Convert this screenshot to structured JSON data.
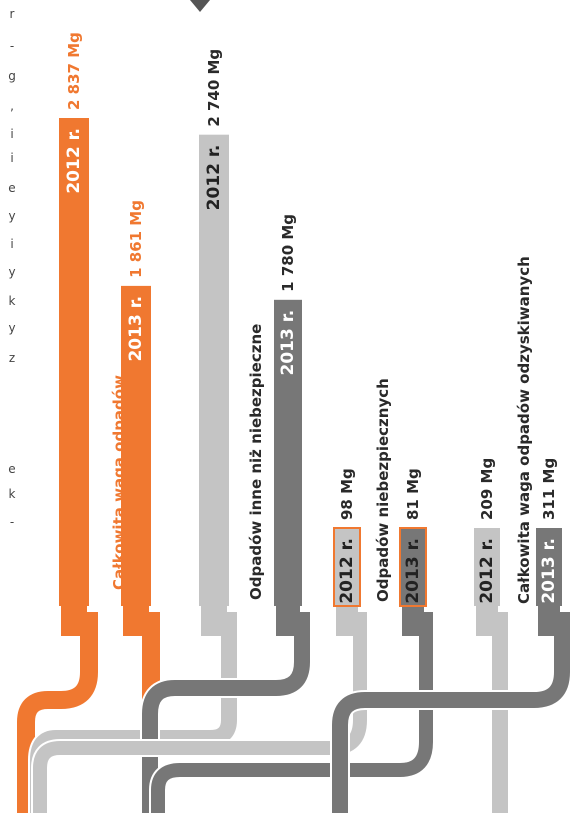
{
  "colors": {
    "orange": "#f07830",
    "light_gray": "#c4c4c4",
    "dark_gray": "#777777",
    "text_dark": "#2a2a2a",
    "white": "#ffffff"
  },
  "margin_letters": [
    "r",
    "-",
    "g",
    ",",
    "i",
    "i",
    "e",
    "y",
    "i",
    "y",
    "k",
    "y",
    "z",
    "e",
    "k",
    "-"
  ],
  "chart_data": {
    "type": "bar",
    "orientation": "vertical, rotated labels",
    "unit": "Mg",
    "groups": [
      {
        "name": "Całkowita waga odpadów",
        "color": "orange",
        "bars": [
          {
            "year_label": "2012 r.",
            "value": 2837,
            "value_label": "2 837 Mg",
            "fill": "#f07830"
          },
          {
            "year_label": "2013 r.",
            "value": 1861,
            "value_label": "1 861 Mg",
            "fill": "#f07830"
          }
        ]
      },
      {
        "name": "Odpadów inne niż niebezpieczne",
        "color": "gray",
        "bars": [
          {
            "year_label": "2012 r.",
            "value": 2740,
            "value_label": "2 740 Mg",
            "fill": "#c4c4c4"
          },
          {
            "year_label": "2013 r.",
            "value": 1780,
            "value_label": "1 780 Mg",
            "fill": "#777777"
          }
        ]
      },
      {
        "name": "Odpadów niebezpiecznych",
        "color": "gray",
        "bars": [
          {
            "year_label": "2012 r.",
            "value": 98,
            "value_label": "98 Mg",
            "fill": "#c4c4c4",
            "outline": "#f07830"
          },
          {
            "year_label": "2013 r.",
            "value": 81,
            "value_label": "81 Mg",
            "fill": "#777777",
            "outline": "#f07830"
          }
        ]
      },
      {
        "name": "Całkowita waga odpadów odzyskiwanych",
        "color": "gray",
        "bars": [
          {
            "year_label": "2012 r.",
            "value": 209,
            "value_label": "209 Mg",
            "fill": "#c4c4c4"
          },
          {
            "year_label": "2013 r.",
            "value": 311,
            "value_label": "311 Mg",
            "fill": "#777777"
          }
        ]
      }
    ]
  }
}
